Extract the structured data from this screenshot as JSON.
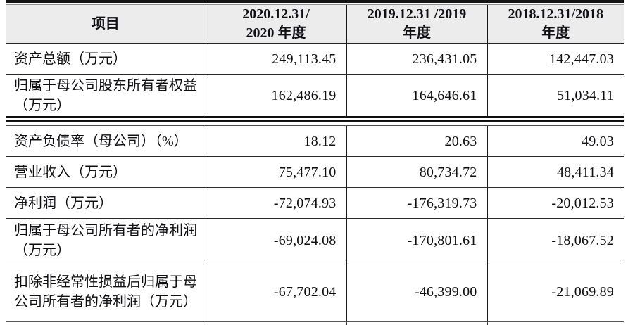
{
  "table": {
    "title_semantic": "key-financial-indicators",
    "columns": {
      "item": "项目",
      "y2020": "2020.12.31/\n2020 年度",
      "y2019": "2019.12.31 /2019\n年度",
      "y2018": "2018.12.31/2018\n年度"
    },
    "rows": [
      {
        "item": "资产总额（万元）",
        "v2020": "249,113.45",
        "v2019": "236,431.05",
        "v2018": "142,447.03"
      },
      {
        "item": "归属于母公司股东所有者权益（万元）",
        "v2020": "162,486.19",
        "v2019": "164,646.61",
        "v2018": "51,034.11"
      },
      {
        "item": "资产负债率（母公司）（%）",
        "v2020": "18.12",
        "v2019": "20.63",
        "v2018": "49.03"
      },
      {
        "item": "营业收入（万元）",
        "v2020": "75,477.10",
        "v2019": "80,734.72",
        "v2018": "48,411.34"
      },
      {
        "item": "净利润（万元）",
        "v2020": "-72,074.93",
        "v2019": "-176,319.73",
        "v2018": "-20,012.53"
      },
      {
        "item": "归属于母公司所有者的净利润（万元）",
        "v2020": "-69,024.08",
        "v2019": "-170,801.61",
        "v2018": "-18,067.52"
      },
      {
        "item": "扣除非经常性损益后归属于母公司所有者的净利润（万元）",
        "v2020": "-67,702.04",
        "v2019": "-46,399.00",
        "v2018": "-21,069.89"
      }
    ],
    "colors": {
      "header_bg": "#ececec",
      "rule_dark": "#141414",
      "text": "#101014"
    }
  }
}
